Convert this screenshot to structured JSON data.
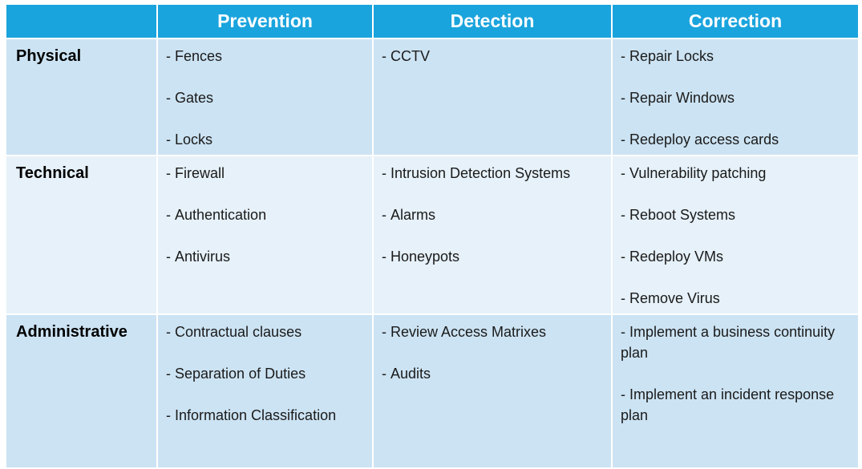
{
  "header": {
    "corner": "",
    "columns": [
      "Prevention",
      "Detection",
      "Correction"
    ]
  },
  "rows": [
    {
      "label": "Physical",
      "prevention": [
        "Fences",
        "Gates",
        "Locks"
      ],
      "detection": [
        "CCTV"
      ],
      "correction": [
        "Repair Locks",
        "Repair Windows",
        "Redeploy access cards"
      ]
    },
    {
      "label": "Technical",
      "prevention": [
        "Firewall",
        "Authentication",
        "Antivirus"
      ],
      "detection": [
        "Intrusion Detection Systems",
        "Alarms",
        "Honeypots"
      ],
      "correction": [
        "Vulnerability patching",
        "Reboot Systems",
        "Redeploy VMs",
        "Remove Virus"
      ]
    },
    {
      "label": "Administrative",
      "prevention": [
        "Contractual clauses",
        "Separation of Duties",
        "Information Classification"
      ],
      "detection": [
        "Review Access Matrixes",
        "Audits"
      ],
      "correction": [
        "Implement a business continuity plan",
        "Implement an incident response plan"
      ]
    }
  ],
  "colors": {
    "header_bg": "#1aa4dd",
    "header_text": "#ffffff",
    "row_dark": "#cce3f3",
    "row_light": "#e6f1f9"
  }
}
